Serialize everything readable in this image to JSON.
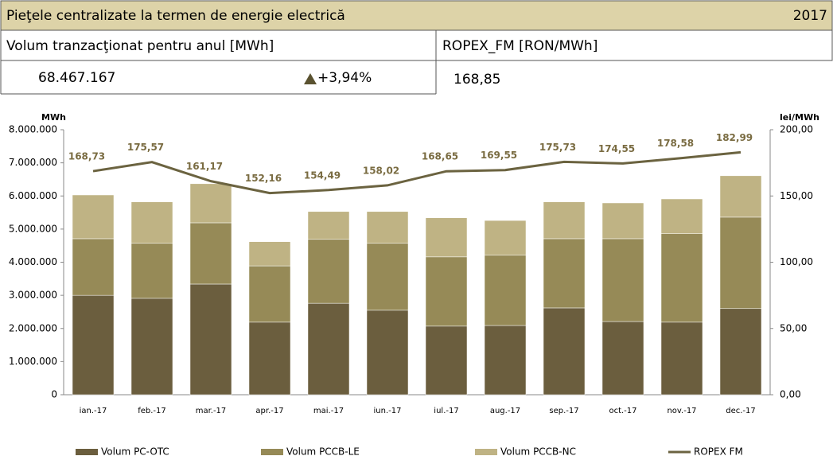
{
  "header": {
    "title": "Pieţele centralizate la termen de energie electrică",
    "year": "2017",
    "volume_label": "Volum tranzacţionat pentru anul [MWh]",
    "ropex_label": "ROPEX_FM [RON/MWh]",
    "volume_value": "68.467.167",
    "volume_change": "+3,94%",
    "ropex_value": "168,85"
  },
  "chart_data": {
    "type": "bar",
    "stacked": true,
    "y_label": "MWh",
    "y2_label": "lei/MWh",
    "categories": [
      "ian.-17",
      "feb.-17",
      "mar.-17",
      "apr.-17",
      "mai.-17",
      "iun.-17",
      "iul.-17",
      "aug.-17",
      "sep.-17",
      "oct.-17",
      "nov.-17",
      "dec.-17"
    ],
    "series": [
      {
        "name": "Volum PC-OTC",
        "color": "#6b5e3e",
        "values": [
          3000000,
          2910000,
          3340000,
          2190000,
          2760000,
          2550000,
          2070000,
          2090000,
          2620000,
          2210000,
          2190000,
          2600000
        ]
      },
      {
        "name": "Volum PCCB-LE",
        "color": "#968a57",
        "values": [
          1710000,
          1660000,
          1850000,
          1700000,
          1930000,
          2020000,
          2090000,
          2120000,
          2090000,
          2500000,
          2670000,
          2760000
        ]
      },
      {
        "name": "Volum PCCB-NC",
        "color": "#bfb384",
        "values": [
          1320000,
          1250000,
          1180000,
          730000,
          840000,
          960000,
          1180000,
          1050000,
          1110000,
          1080000,
          1050000,
          1250000
        ]
      },
      {
        "name": "ROPEX FM",
        "color": "#6b6340",
        "type": "line",
        "axis": "y2",
        "values": [
          168.73,
          175.57,
          161.17,
          152.16,
          154.49,
          158.02,
          168.65,
          169.55,
          175.73,
          174.55,
          178.58,
          182.99
        ],
        "value_labels": [
          "168,73",
          "175,57",
          "161,17",
          "152,16",
          "154,49",
          "158,02",
          "168,65",
          "169,55",
          "175,73",
          "174,55",
          "178,58",
          "182,99"
        ]
      }
    ],
    "ylim": [
      0,
      8000000
    ],
    "yticks": [
      0,
      {
        "value": 1000000,
        "label": "1.000.000"
      },
      {
        "value": 2000000,
        "label": "2.000.000"
      },
      {
        "value": 3000000,
        "label": "3.000.000"
      },
      {
        "value": 4000000,
        "label": "4.000.000"
      },
      {
        "value": 5000000,
        "label": "5.000.000"
      },
      {
        "value": 6000000,
        "label": "6.000.000"
      },
      {
        "value": 7000000,
        "label": "7.000.000"
      },
      {
        "value": 8000000,
        "label": "8.000.000"
      }
    ],
    "y2lim": [
      0,
      200
    ],
    "y2ticks": [
      {
        "value": 0,
        "label": "0,00"
      },
      {
        "value": 50,
        "label": "50,00"
      },
      {
        "value": 100,
        "label": "100,00"
      },
      {
        "value": 150,
        "label": "150,00"
      },
      {
        "value": 200,
        "label": "200,00"
      }
    ],
    "legend": "bottom"
  }
}
